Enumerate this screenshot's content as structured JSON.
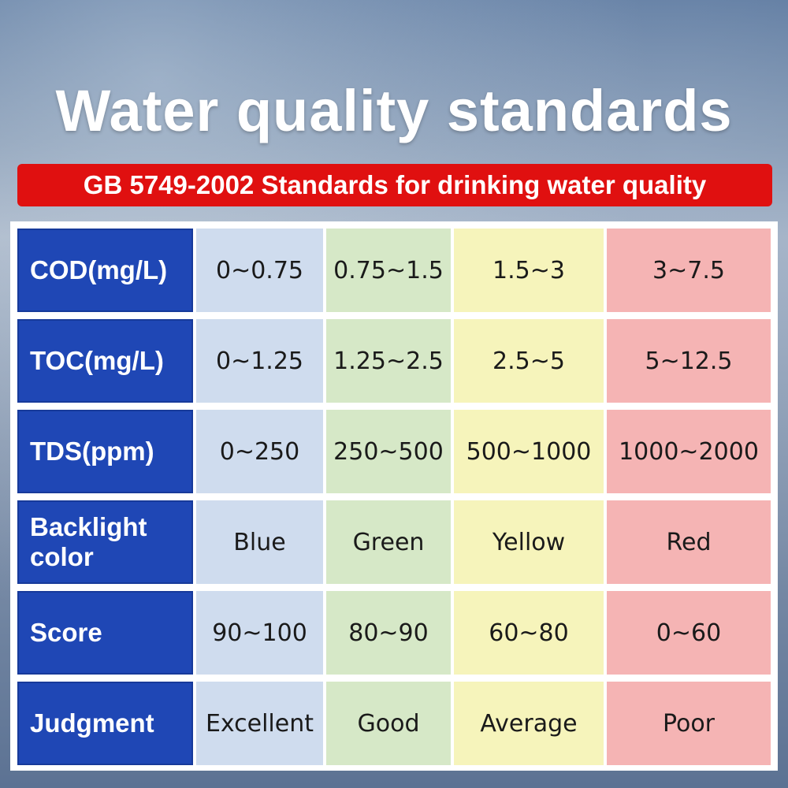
{
  "title": "Water quality standards",
  "subtitle": "GB 5749-2002 Standards for drinking water quality",
  "colors": {
    "header": "#1f47b5",
    "blue": "#cfdcee",
    "green": "#d6e8c7",
    "yellow": "#f6f4bb",
    "red": "#f5b4b4",
    "banner": "#e01010"
  },
  "rows": [
    {
      "label": "COD(mg/L)",
      "values": [
        "0~0.75",
        "0.75~1.5",
        "1.5~3",
        "3~7.5"
      ]
    },
    {
      "label": "TOC(mg/L)",
      "values": [
        "0~1.25",
        "1.25~2.5",
        "2.5~5",
        "5~12.5"
      ]
    },
    {
      "label": "TDS(ppm)",
      "values": [
        "0~250",
        "250~500",
        "500~1000",
        "1000~2000"
      ]
    },
    {
      "label": "Backlight color",
      "values": [
        "Blue",
        "Green",
        "Yellow",
        "Red"
      ]
    },
    {
      "label": "Score",
      "values": [
        "90~100",
        "80~90",
        "60~80",
        "0~60"
      ]
    },
    {
      "label": "Judgment",
      "values": [
        "Excellent",
        "Good",
        "Average",
        "Poor"
      ]
    }
  ]
}
